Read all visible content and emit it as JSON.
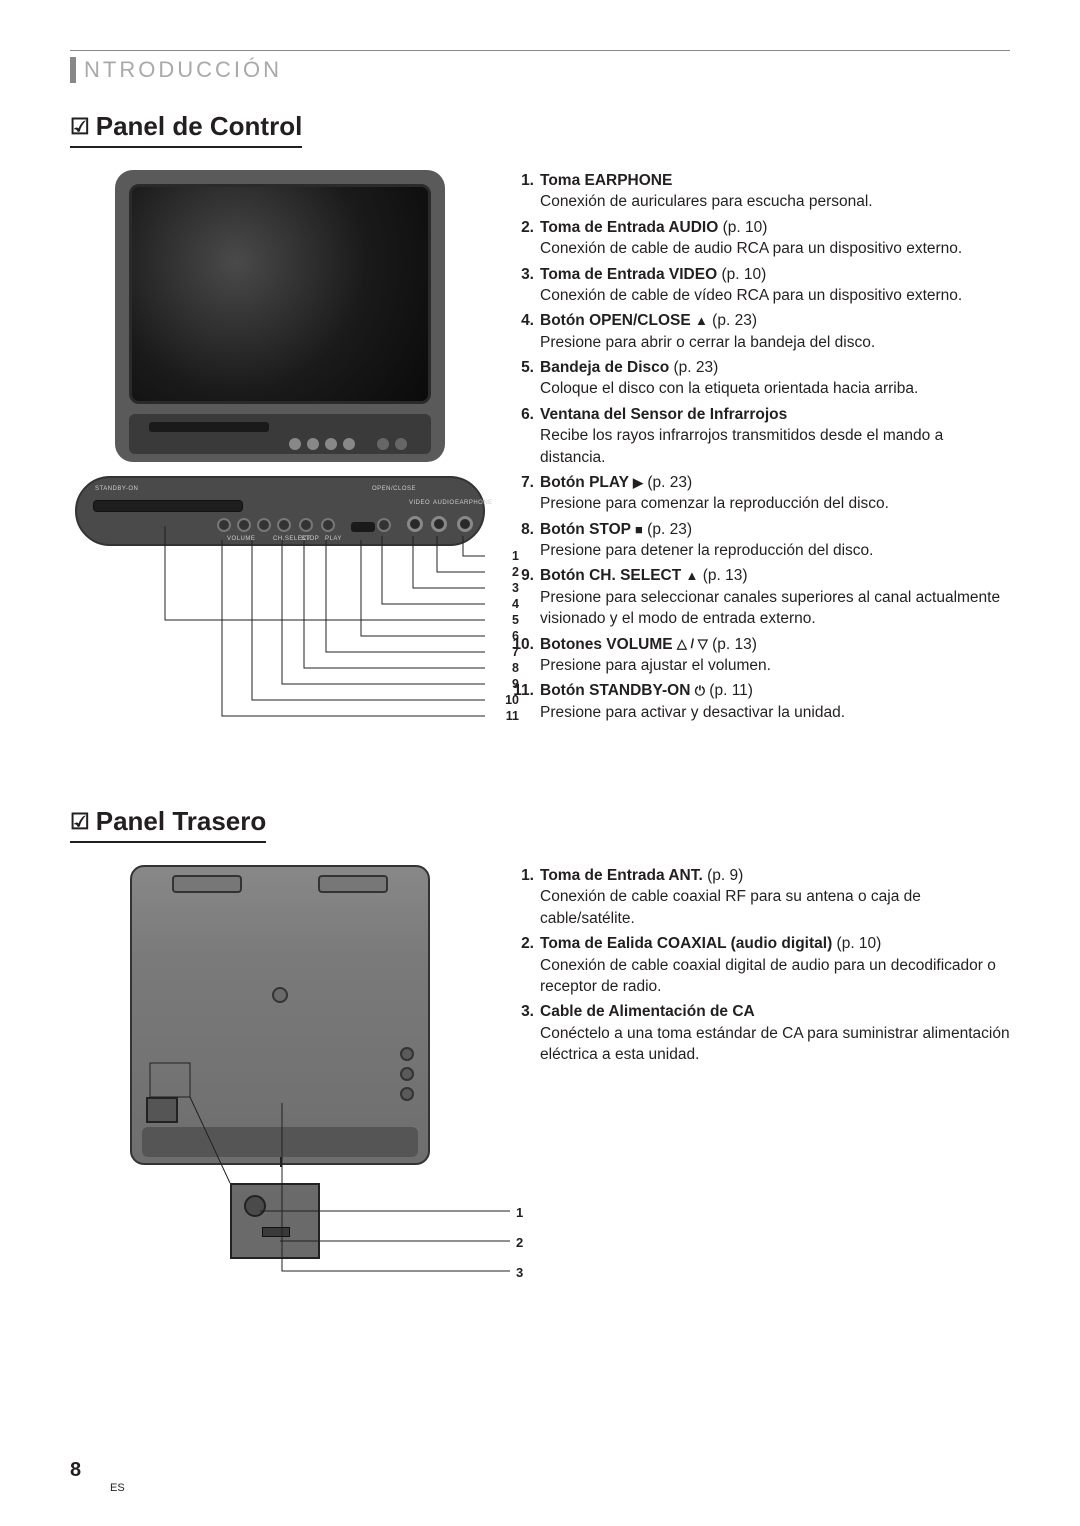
{
  "header": {
    "section": "NTRODUCCIÓN"
  },
  "sections": {
    "control": {
      "title": "Panel de Control",
      "items": [
        {
          "n": "1.",
          "title": "Toma EARPHONE",
          "ref": "",
          "desc": "Conexión de auriculares para escucha personal."
        },
        {
          "n": "2.",
          "title": "Toma de Entrada AUDIO",
          "ref": " (p. 10)",
          "desc": "Conexión de cable de audio RCA para un dispositivo externo."
        },
        {
          "n": "3.",
          "title": "Toma de Entrada VIDEO",
          "ref": " (p. 10)",
          "desc": "Conexión de cable de vídeo RCA para un dispositivo externo."
        },
        {
          "n": "4.",
          "title": "Botón OPEN/CLOSE ",
          "sym": "▲",
          "ref": " (p. 23)",
          "desc": "Presione para abrir o cerrar la bandeja del disco."
        },
        {
          "n": "5.",
          "title": "Bandeja de Disco",
          "ref": " (p. 23)",
          "desc": "Coloque el disco con la etiqueta orientada hacia arriba."
        },
        {
          "n": "6.",
          "title": "Ventana del Sensor de Infrarrojos",
          "ref": "",
          "desc": "Recibe los rayos infrarrojos transmitidos desde el mando a distancia."
        },
        {
          "n": "7.",
          "title": "Botón PLAY ",
          "sym": "▶",
          "ref": " (p. 23)",
          "desc": "Presione para comenzar la reproducción del disco."
        },
        {
          "n": "8.",
          "title": "Botón STOP ",
          "sym": "■",
          "ref": " (p. 23)",
          "desc": "Presione para detener la reproducción del disco."
        },
        {
          "n": "9.",
          "title": "Botón CH. SELECT ",
          "sym": "▲",
          "ref": " (p. 13)",
          "desc": "Presione para seleccionar canales superiores al canal actualmente visionado y el modo de entrada externo."
        },
        {
          "n": "10.",
          "title": "Botones VOLUME ",
          "sym": "△ / ▽",
          "ref": " (p. 13)",
          "desc": "Presione para ajustar el volumen."
        },
        {
          "n": "11.",
          "title": "Botón STANDBY-ON ",
          "sym": "⏻",
          "ref": " (p. 11)",
          "desc": "Presione para activar y desactivar la unidad."
        }
      ]
    },
    "rear": {
      "title": "Panel Trasero",
      "items": [
        {
          "n": "1.",
          "title": "Toma de Entrada ANT.",
          "ref": " (p. 9)",
          "desc": "Conexión de cable coaxial RF para su antena o caja de cable/satélite."
        },
        {
          "n": "2.",
          "title": "Toma de Ealida COAXIAL (audio digital)",
          "ref": " (p. 10)",
          "desc": "Conexión de cable coaxial digital de audio para un decodificador o receptor de radio."
        },
        {
          "n": "3.",
          "title": "Cable de Alimentación de CA",
          "ref": "",
          "desc": "Conéctelo a una toma estándar de CA para suministrar alimentación eléctrica a esta unidad."
        }
      ]
    }
  },
  "diagram": {
    "control_leaders": [
      "1",
      "2",
      "3",
      "4",
      "5",
      "6",
      "7",
      "8",
      "9",
      "10",
      "11"
    ],
    "rear_leaders": [
      "1",
      "2",
      "3"
    ],
    "panel_labels": {
      "standby": "STANDBY-ON",
      "open": "OPEN/CLOSE",
      "video": "VIDEO",
      "audio": "AUDIO",
      "ear": "EARPHONE",
      "vol": "VOLUME",
      "ch": "CH.SELECT",
      "stop": "STOP",
      "play": "PLAY"
    },
    "colors": {
      "body": "#5a5a5a",
      "screen_dark": "#0a0a0a",
      "line": "#231f20"
    }
  },
  "footer": {
    "page": "8",
    "lang": "ES"
  }
}
